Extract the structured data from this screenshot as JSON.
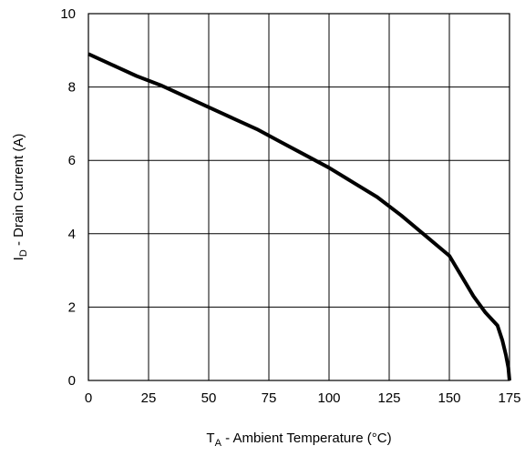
{
  "chart_data": {
    "type": "line",
    "xlabel": {
      "main": "T",
      "sub": "A",
      "rest": " - Ambient Temperature (°C)"
    },
    "ylabel": {
      "main": "I",
      "sub": "D",
      "rest": " - Drain Current (A)"
    },
    "xlim": [
      0,
      175
    ],
    "ylim": [
      0,
      10
    ],
    "xticks": [
      0,
      25,
      50,
      75,
      100,
      125,
      150,
      175
    ],
    "yticks": [
      0,
      2,
      4,
      6,
      8,
      10
    ],
    "grid": true,
    "series": [
      {
        "color": "#000000",
        "x": [
          0,
          10,
          20,
          30,
          40,
          50,
          60,
          70,
          80,
          90,
          100,
          110,
          120,
          130,
          140,
          150,
          155,
          160,
          165,
          170,
          172,
          173.5,
          174.5,
          175
        ],
        "y": [
          8.9,
          8.6,
          8.3,
          8.05,
          7.75,
          7.45,
          7.15,
          6.85,
          6.5,
          6.15,
          5.8,
          5.4,
          5.0,
          4.5,
          3.95,
          3.4,
          2.85,
          2.3,
          1.85,
          1.5,
          1.1,
          0.7,
          0.35,
          0.0
        ]
      }
    ]
  }
}
